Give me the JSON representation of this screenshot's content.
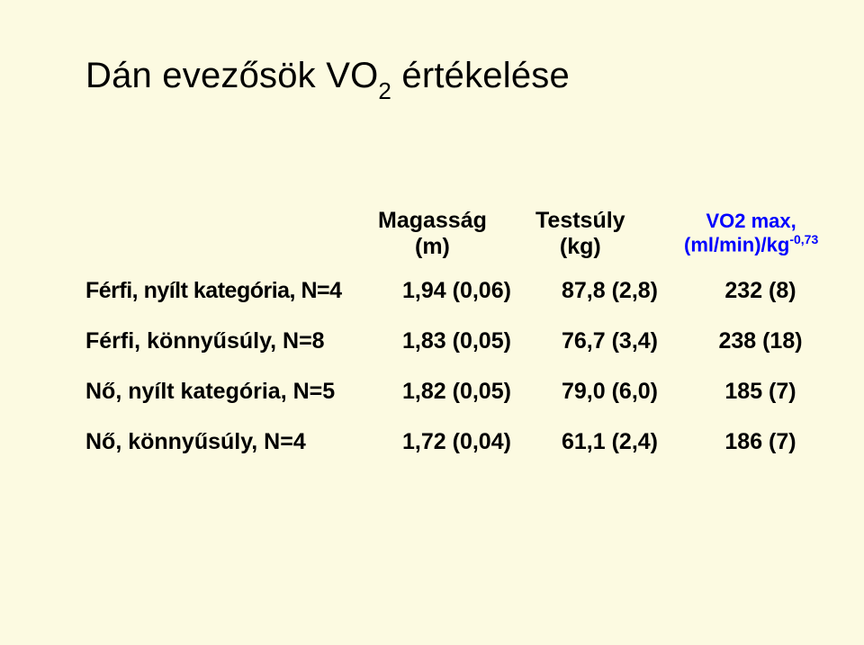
{
  "title_html": "Dán evezősök VO<sub>2</sub> értékelése",
  "headers": {
    "height": "Magasság<br>(m)",
    "weight": "Testsúly<br>(kg)",
    "vo2": "VO2 max,<br>(ml/min)/kg<sup>-0,73</sup>"
  },
  "rows": [
    {
      "label": "Férfi, nyílt kategória, N=4",
      "h": "1,94 (0,06)",
      "w": "87,8 (2,8)",
      "vo2": "232 (8)"
    },
    {
      "label": "Férfi, könnyűsúly, N=8",
      "h": "1,83 (0,05)",
      "w": "76,7 (3,4)",
      "vo2": "238 (18)"
    },
    {
      "label": "Nő, nyílt kategória, N=5",
      "h": "1,82 (0,05)",
      "w": "79,0 (6,0)",
      "vo2": "185 (7)"
    },
    {
      "label": "Nő, könnyűsúly, N=4",
      "h": "1,72 (0,04)",
      "w": "61,1 (2,4)",
      "vo2": "186 (7)"
    }
  ],
  "colors": {
    "background": "#fcfae1",
    "text": "#000000",
    "vo2_header": "#0000ff"
  }
}
